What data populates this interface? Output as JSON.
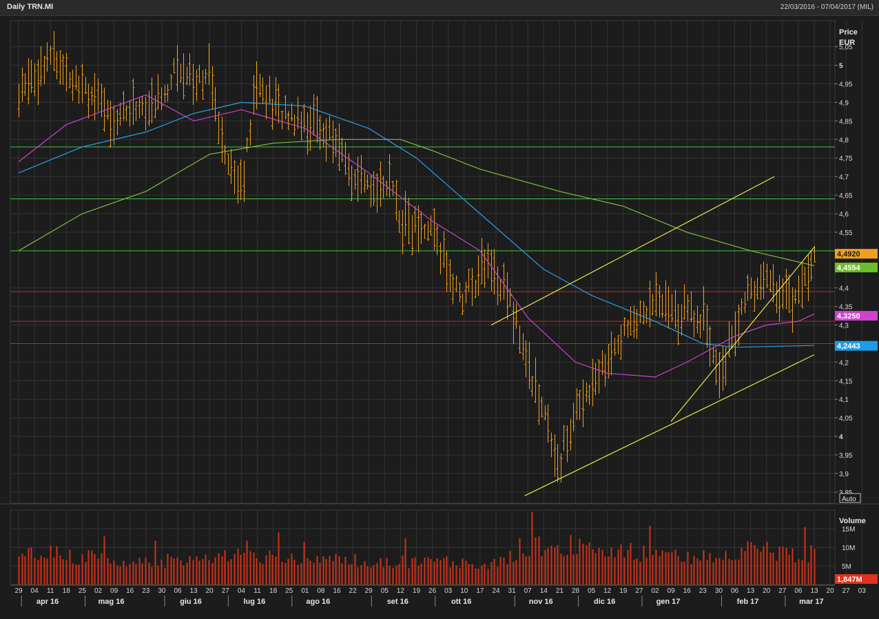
{
  "header": {
    "title": "Daily TRN.MI",
    "date_range": "22/03/2016 - 07/04/2017 (MIL)"
  },
  "chart_data": {
    "type": "ohlc-bar",
    "price_axis": {
      "label": "Price",
      "unit": "EUR",
      "ylim": [
        3.82,
        5.12
      ],
      "ticks": [
        {
          "v": 3.85,
          "label": "3,85"
        },
        {
          "v": 3.9,
          "label": "3,9"
        },
        {
          "v": 3.95,
          "label": "3,95"
        },
        {
          "v": 4.0,
          "label": "4",
          "bold": true
        },
        {
          "v": 4.05,
          "label": "4,05"
        },
        {
          "v": 4.1,
          "label": "4,1"
        },
        {
          "v": 4.15,
          "label": "4,15"
        },
        {
          "v": 4.2,
          "label": "4,2"
        },
        {
          "v": 4.3,
          "label": "4,3"
        },
        {
          "v": 4.35,
          "label": "4,35"
        },
        {
          "v": 4.4,
          "label": "4,4"
        },
        {
          "v": 4.55,
          "label": "4,55"
        },
        {
          "v": 4.6,
          "label": "4,6"
        },
        {
          "v": 4.65,
          "label": "4,65"
        },
        {
          "v": 4.7,
          "label": "4,7"
        },
        {
          "v": 4.75,
          "label": "4,75"
        },
        {
          "v": 4.8,
          "label": "4,8"
        },
        {
          "v": 4.85,
          "label": "4,85"
        },
        {
          "v": 4.9,
          "label": "4,9"
        },
        {
          "v": 4.95,
          "label": "4,95"
        },
        {
          "v": 5.0,
          "label": "5",
          "bold": true
        },
        {
          "v": 5.05,
          "label": "5,05"
        }
      ],
      "auto_button": "Auto"
    },
    "volume_axis": {
      "label": "Volume",
      "ylim": [
        0,
        20
      ],
      "ticks": [
        {
          "v": 5,
          "label": "5M"
        },
        {
          "v": 10,
          "label": "10M"
        },
        {
          "v": 15,
          "label": "15M"
        }
      ]
    },
    "x_axis": {
      "days": [
        "29",
        "04",
        "11",
        "18",
        "25",
        "02",
        "09",
        "16",
        "23",
        "30",
        "06",
        "13",
        "20",
        "27",
        "04",
        "11",
        "18",
        "25",
        "01",
        "08",
        "16",
        "22",
        "29",
        "05",
        "12",
        "19",
        "26",
        "03",
        "10",
        "17",
        "24",
        "31",
        "07",
        "14",
        "21",
        "28",
        "05",
        "12",
        "19",
        "27",
        "02",
        "09",
        "16",
        "23",
        "30",
        "06",
        "13",
        "20",
        "27",
        "06",
        "13",
        "20",
        "27",
        "03"
      ],
      "months": [
        {
          "label": "apr 16",
          "week": 1
        },
        {
          "label": "mag 16",
          "week": 5
        },
        {
          "label": "giu 16",
          "week": 10
        },
        {
          "label": "lug 16",
          "week": 14
        },
        {
          "label": "ago 16",
          "week": 18
        },
        {
          "label": "set 16",
          "week": 23
        },
        {
          "label": "ott 16",
          "week": 27
        },
        {
          "label": "nov 16",
          "week": 32
        },
        {
          "label": "dic 16",
          "week": 36
        },
        {
          "label": "gen 17",
          "week": 40
        },
        {
          "label": "feb 17",
          "week": 45
        },
        {
          "label": "mar 17",
          "week": 49
        }
      ]
    },
    "price_path": [
      [
        0,
        4.92
      ],
      [
        1,
        4.98
      ],
      [
        2,
        5.02
      ],
      [
        3,
        4.99
      ],
      [
        4,
        4.96
      ],
      [
        5,
        4.88
      ],
      [
        6,
        4.86
      ],
      [
        7,
        4.89
      ],
      [
        8,
        4.88
      ],
      [
        9,
        4.92
      ],
      [
        10,
        5.0
      ],
      [
        11,
        4.97
      ],
      [
        12,
        4.96
      ],
      [
        13,
        4.78
      ],
      [
        14,
        4.66
      ],
      [
        15,
        4.97
      ],
      [
        16,
        4.89
      ],
      [
        17,
        4.86
      ],
      [
        18,
        4.86
      ],
      [
        19,
        4.83
      ],
      [
        20,
        4.79
      ],
      [
        21,
        4.7
      ],
      [
        22,
        4.66
      ],
      [
        23,
        4.69
      ],
      [
        24,
        4.6
      ],
      [
        25,
        4.56
      ],
      [
        26,
        4.55
      ],
      [
        27,
        4.45
      ],
      [
        28,
        4.37
      ],
      [
        29,
        4.45
      ],
      [
        30,
        4.45
      ],
      [
        31,
        4.35
      ],
      [
        32,
        4.2
      ],
      [
        33,
        4.05
      ],
      [
        34,
        3.92
      ],
      [
        35,
        4.07
      ],
      [
        36,
        4.15
      ],
      [
        37,
        4.2
      ],
      [
        38,
        4.28
      ],
      [
        39,
        4.32
      ],
      [
        40,
        4.37
      ],
      [
        41,
        4.33
      ],
      [
        42,
        4.33
      ],
      [
        43,
        4.32
      ],
      [
        44,
        4.18
      ],
      [
        45,
        4.28
      ],
      [
        46,
        4.39
      ],
      [
        47,
        4.43
      ],
      [
        48,
        4.38
      ],
      [
        49,
        4.38
      ],
      [
        50,
        4.49
      ]
    ],
    "volume_path": [
      [
        0,
        7.5
      ],
      [
        2,
        8.2
      ],
      [
        5,
        7.2
      ],
      [
        8,
        6.3
      ],
      [
        10,
        6.5
      ],
      [
        12,
        7.0
      ],
      [
        13,
        8.5
      ],
      [
        14,
        10.0
      ],
      [
        15,
        7.5
      ],
      [
        17,
        7.0
      ],
      [
        20,
        6.5
      ],
      [
        23,
        6.0
      ],
      [
        26,
        6.2
      ],
      [
        29,
        5.5
      ],
      [
        31,
        7.5
      ],
      [
        32,
        10.5
      ],
      [
        34,
        11.0
      ],
      [
        36,
        10.0
      ],
      [
        38,
        9.0
      ],
      [
        40,
        7.5
      ],
      [
        42,
        7.5
      ],
      [
        44,
        7.0
      ],
      [
        46,
        9.5
      ],
      [
        48,
        8.5
      ],
      [
        50,
        8.5
      ]
    ],
    "moving_averages": [
      {
        "color": "#cc44cc",
        "path": [
          [
            0,
            4.74
          ],
          [
            3,
            4.84
          ],
          [
            8,
            4.92
          ],
          [
            11,
            4.85
          ],
          [
            14,
            4.88
          ],
          [
            18,
            4.83
          ],
          [
            22,
            4.71
          ],
          [
            26,
            4.58
          ],
          [
            29,
            4.5
          ],
          [
            32,
            4.32
          ],
          [
            35,
            4.2
          ],
          [
            37,
            4.17
          ],
          [
            40,
            4.16
          ],
          [
            42,
            4.2
          ],
          [
            45,
            4.27
          ],
          [
            47,
            4.3
          ],
          [
            49,
            4.31
          ],
          [
            50,
            4.33
          ]
        ]
      },
      {
        "color": "#2f9fe6",
        "path": [
          [
            0,
            4.71
          ],
          [
            4,
            4.78
          ],
          [
            8,
            4.82
          ],
          [
            11,
            4.87
          ],
          [
            14,
            4.9
          ],
          [
            18,
            4.89
          ],
          [
            22,
            4.83
          ],
          [
            25,
            4.75
          ],
          [
            29,
            4.6
          ],
          [
            33,
            4.45
          ],
          [
            36,
            4.38
          ],
          [
            40,
            4.31
          ],
          [
            43,
            4.25
          ],
          [
            45,
            4.24
          ],
          [
            50,
            4.245
          ]
        ]
      },
      {
        "color": "#7fbf3f",
        "path": [
          [
            0,
            4.5
          ],
          [
            4,
            4.6
          ],
          [
            8,
            4.66
          ],
          [
            12,
            4.76
          ],
          [
            16,
            4.79
          ],
          [
            20,
            4.8
          ],
          [
            24,
            4.8
          ],
          [
            26,
            4.77
          ],
          [
            29,
            4.72
          ],
          [
            34,
            4.66
          ],
          [
            38,
            4.62
          ],
          [
            42,
            4.55
          ],
          [
            46,
            4.5
          ],
          [
            50,
            4.46
          ]
        ]
      }
    ],
    "horizontal_lines": [
      {
        "v": 4.78,
        "color": "#3cc43c"
      },
      {
        "v": 4.64,
        "color": "#3cc43c"
      },
      {
        "v": 4.5,
        "color": "#3cc43c"
      },
      {
        "v": 4.39,
        "color": "#d42020"
      },
      {
        "v": 4.31,
        "color": "#d42020"
      },
      {
        "v": 4.25,
        "color": "#d42020"
      }
    ],
    "trendlines": [
      {
        "from": [
          29.7,
          4.3
        ],
        "to": [
          47.5,
          4.7
        ]
      },
      {
        "from": [
          31.8,
          3.84
        ],
        "to": [
          50.0,
          4.22
        ]
      },
      {
        "from": [
          41.0,
          4.04
        ],
        "to": [
          50.0,
          4.51
        ]
      }
    ],
    "price_tags": [
      {
        "label": "4,4920",
        "v": 4.492,
        "bg": "#f0a020",
        "fg": "#1c1c1c"
      },
      {
        "label": "4,4554",
        "v": 4.455,
        "bg": "#6dbe2a",
        "fg": "#ffffff"
      },
      {
        "label": "4,3250",
        "v": 4.325,
        "bg": "#cc44cc",
        "fg": "#ffffff"
      },
      {
        "label": "4,2443",
        "v": 4.244,
        "bg": "#1e9be8",
        "fg": "#ffffff"
      }
    ],
    "volume_tag": {
      "label": "1,847M",
      "bg": "#e0321f",
      "fg": "#ffffff"
    },
    "colors": {
      "bars": "#f0a020",
      "volume": "#d03218",
      "grid": "#333333",
      "background": "#1c1c1c"
    }
  }
}
